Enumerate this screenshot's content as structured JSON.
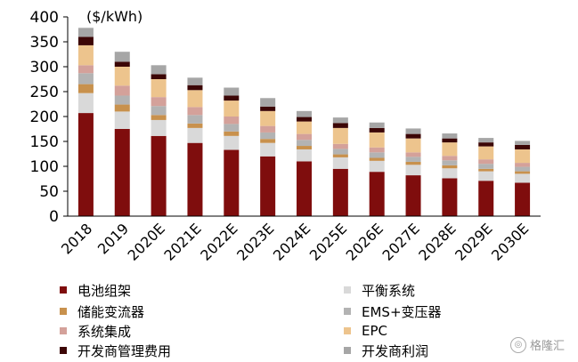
{
  "chart_data": {
    "type": "bar",
    "stacked": true,
    "unit_label": "($/kWh)",
    "categories": [
      "2018",
      "2019",
      "2020E",
      "2021E",
      "2022E",
      "2023E",
      "2024E",
      "2025E",
      "2026E",
      "2027E",
      "2028E",
      "2029E",
      "2030E"
    ],
    "y_ticks": [
      0,
      50,
      100,
      150,
      200,
      250,
      300,
      350,
      400
    ],
    "ylim": [
      0,
      400
    ],
    "grid": false,
    "series": [
      {
        "name": "电池组架",
        "color": "#7f0d0d",
        "values": [
          207,
          175,
          161,
          147,
          133,
          120,
          110,
          95,
          89,
          82,
          76,
          71,
          67
        ]
      },
      {
        "name": "平衡系统",
        "color": "#d9d9d9",
        "values": [
          40,
          35,
          32,
          30,
          28,
          27,
          24,
          23,
          22,
          21,
          20,
          19,
          18
        ]
      },
      {
        "name": "储能变流器",
        "color": "#c8914d",
        "values": [
          18,
          14,
          10,
          9,
          9,
          8,
          7,
          6,
          6,
          6,
          6,
          5,
          5
        ]
      },
      {
        "name": "EMS+变压器",
        "color": "#b3b3b3",
        "values": [
          22,
          18,
          18,
          17,
          15,
          13,
          12,
          11,
          11,
          10,
          10,
          10,
          9
        ]
      },
      {
        "name": "系统集成",
        "color": "#d4a19a",
        "values": [
          16,
          20,
          18,
          16,
          15,
          13,
          12,
          10,
          10,
          9,
          9,
          9,
          8
        ]
      },
      {
        "name": "EPC",
        "color": "#edc48d",
        "values": [
          40,
          38,
          36,
          34,
          32,
          30,
          25,
          32,
          30,
          28,
          27,
          26,
          27
        ]
      },
      {
        "name": "开发商管理费用",
        "color": "#3c0606",
        "values": [
          17,
          10,
          10,
          10,
          10,
          9,
          9,
          10,
          9,
          9,
          8,
          8,
          9
        ]
      },
      {
        "name": "开发商利润",
        "color": "#a6a6a6",
        "values": [
          18,
          20,
          18,
          15,
          16,
          17,
          12,
          11,
          11,
          11,
          10,
          9,
          8
        ]
      }
    ]
  },
  "watermark": {
    "text": "格隆汇",
    "icon": "logo-circle-icon"
  }
}
